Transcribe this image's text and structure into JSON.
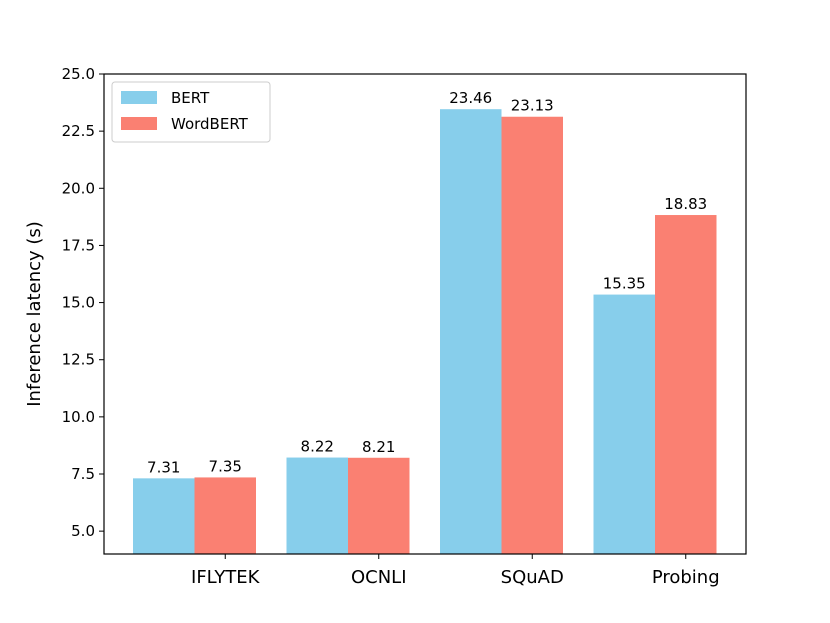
{
  "chart_data": {
    "type": "bar",
    "title": "",
    "xlabel": "",
    "ylabel": "Inference latency (s)",
    "categories": [
      "IFLYTEK",
      "OCNLI",
      "SQuAD",
      "Probing"
    ],
    "series": [
      {
        "name": "BERT",
        "color": "#87CEEB",
        "values": [
          7.31,
          8.22,
          23.46,
          15.35
        ],
        "labels": [
          "7.31",
          "8.22",
          "23.46",
          "15.35"
        ]
      },
      {
        "name": "WordBERT",
        "color": "#FA8072",
        "values": [
          7.35,
          8.21,
          23.13,
          18.83
        ],
        "labels": [
          "7.35",
          "8.21",
          "23.13",
          "18.83"
        ]
      }
    ],
    "ylim": [
      4.0,
      25.0
    ],
    "yticks": [
      5.0,
      7.5,
      10.0,
      12.5,
      15.0,
      17.5,
      20.0,
      22.5,
      25.0
    ],
    "ytick_labels": [
      "5.0",
      "7.5",
      "10.0",
      "12.5",
      "15.0",
      "17.5",
      "20.0",
      "22.5",
      "25.0"
    ],
    "grid": false,
    "legend_position": "top-left"
  }
}
